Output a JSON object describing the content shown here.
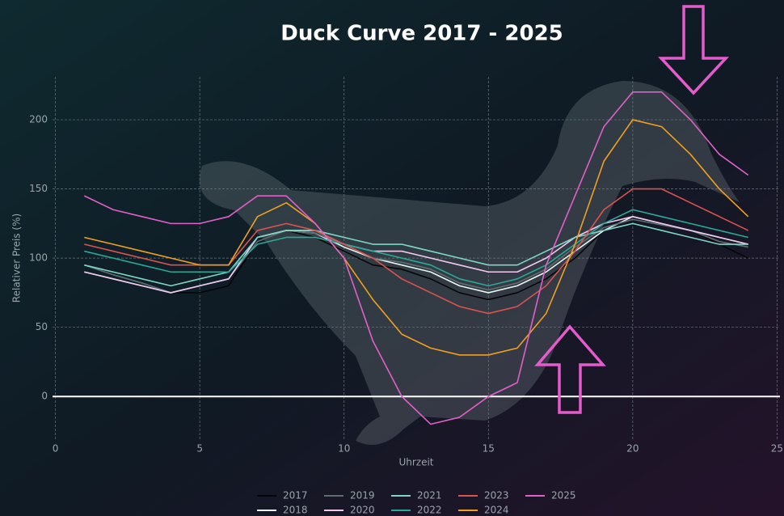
{
  "chart_data": {
    "type": "line",
    "title": "Duck Curve 2017 - 2025",
    "x_label": "Uhrzeit",
    "y_label": "Relativer Preis (%)",
    "x": [
      1,
      2,
      3,
      4,
      5,
      6,
      7,
      8,
      9,
      10,
      11,
      12,
      13,
      14,
      15,
      16,
      17,
      18,
      19,
      20,
      21,
      22,
      23,
      24
    ],
    "xlim": [
      -0.1,
      25.1
    ],
    "xticks": [
      0,
      5,
      10,
      15,
      20,
      25
    ],
    "ylim": [
      -32,
      231
    ],
    "yticks": [
      0,
      50,
      100,
      150,
      200
    ],
    "grid": true,
    "legend": "bottom",
    "series": [
      {
        "name": "2017",
        "color": "#050608",
        "values": [
          90,
          85,
          80,
          75,
          75,
          80,
          112,
          120,
          115,
          105,
          95,
          92,
          85,
          75,
          70,
          75,
          85,
          100,
          120,
          130,
          125,
          120,
          110,
          100
        ]
      },
      {
        "name": "2018",
        "color": "#e8f4f4",
        "values": [
          90,
          85,
          80,
          75,
          80,
          85,
          115,
          120,
          118,
          108,
          100,
          95,
          90,
          80,
          75,
          80,
          90,
          105,
          120,
          130,
          125,
          120,
          115,
          110
        ]
      },
      {
        "name": "2019",
        "color": "#5f6f6f",
        "values": [
          95,
          88,
          82,
          75,
          80,
          85,
          112,
          120,
          118,
          110,
          100,
          97,
          92,
          82,
          77,
          82,
          92,
          108,
          122,
          128,
          124,
          120,
          112,
          108
        ]
      },
      {
        "name": "2020",
        "color": "#f0c8f0",
        "values": [
          90,
          85,
          80,
          75,
          80,
          85,
          115,
          120,
          120,
          110,
          105,
          105,
          100,
          95,
          90,
          90,
          100,
          115,
          125,
          130,
          125,
          120,
          115,
          110
        ]
      },
      {
        "name": "2021",
        "color": "#7dd6c6",
        "values": [
          95,
          90,
          85,
          80,
          85,
          90,
          115,
          120,
          120,
          115,
          110,
          110,
          105,
          100,
          95,
          95,
          105,
          115,
          120,
          125,
          120,
          115,
          110,
          110
        ]
      },
      {
        "name": "2022",
        "color": "#2aa898",
        "values": [
          105,
          100,
          95,
          90,
          90,
          90,
          110,
          115,
          115,
          110,
          105,
          100,
          95,
          85,
          80,
          85,
          95,
          110,
          125,
          135,
          130,
          125,
          120,
          115
        ]
      },
      {
        "name": "2023",
        "color": "#d9534f",
        "values": [
          110,
          105,
          100,
          95,
          95,
          95,
          120,
          125,
          120,
          110,
          100,
          85,
          75,
          65,
          60,
          65,
          80,
          105,
          135,
          150,
          150,
          140,
          130,
          120
        ]
      },
      {
        "name": "2024",
        "color": "#f0a020",
        "values": [
          115,
          110,
          105,
          100,
          95,
          95,
          130,
          140,
          125,
          100,
          70,
          45,
          35,
          30,
          30,
          35,
          60,
          110,
          170,
          200,
          195,
          175,
          150,
          130
        ]
      },
      {
        "name": "2025",
        "color": "#e060c8",
        "values": [
          145,
          135,
          130,
          125,
          125,
          130,
          145,
          145,
          125,
          100,
          40,
          0,
          -20,
          -15,
          0,
          10,
          95,
          145,
          195,
          220,
          220,
          200,
          175,
          160
        ]
      }
    ]
  }
}
